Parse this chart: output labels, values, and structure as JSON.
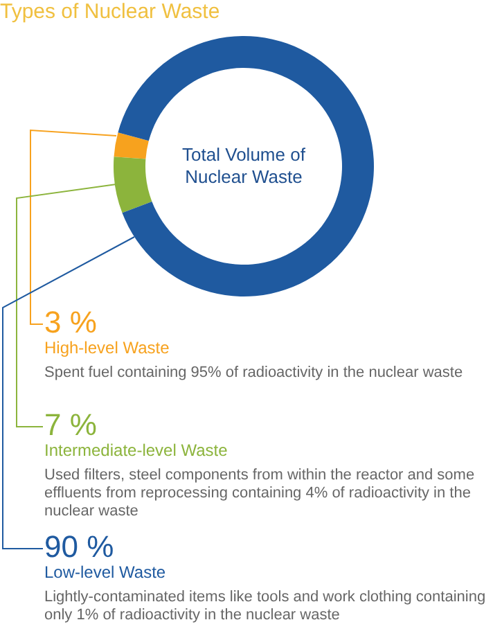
{
  "chart_data": {
    "type": "donut",
    "title": "Types of Nuclear Waste",
    "categories": [
      "High-level Waste",
      "Intermediate-level Waste",
      "Low-level Waste"
    ],
    "values": [
      3,
      7,
      90
    ],
    "colors": [
      "#f7a21e",
      "#8cb43c",
      "#1f5aa0"
    ],
    "value_labels": [
      "3 %",
      "7 %",
      "90 %"
    ],
    "annotations": [
      "Total Volume of Nuclear Waste",
      "Spent fuel containing 95% of radioactivity in the nuclear waste",
      "Used filters, steel components from within the reactor and some effluents from reprocessing containing 4% of radioactivity in the nuclear waste",
      "Lightly-contaminated items like tools and work clothing containing only 1% of radioactivity in the nuclear waste"
    ]
  }
}
